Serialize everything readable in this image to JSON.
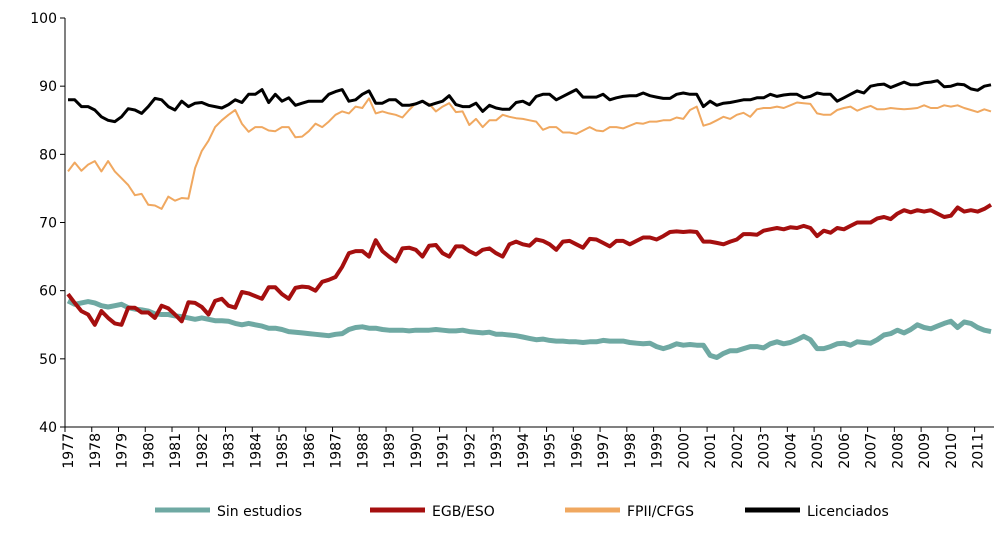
{
  "chart_data": {
    "type": "line",
    "categories": [
      "1977",
      null,
      null,
      null,
      "1978",
      null,
      null,
      null,
      "1979",
      null,
      null,
      null,
      "1980",
      null,
      null,
      null,
      "1981",
      null,
      null,
      null,
      "1982",
      null,
      null,
      null,
      "1983",
      null,
      null,
      null,
      "1984",
      null,
      null,
      null,
      "1985",
      null,
      null,
      null,
      "1986",
      null,
      null,
      null,
      "1987",
      null,
      null,
      null,
      "1988",
      null,
      null,
      null,
      "1989",
      null,
      null,
      null,
      "1990",
      null,
      null,
      null,
      "1991",
      null,
      null,
      null,
      "1992",
      null,
      null,
      null,
      "1993",
      null,
      null,
      null,
      "1994",
      null,
      null,
      null,
      "1995",
      null,
      null,
      null,
      "1996",
      null,
      null,
      null,
      "1997",
      null,
      null,
      null,
      "1998",
      null,
      null,
      null,
      "1999",
      null,
      null,
      null,
      "2000",
      null,
      null,
      null,
      "2001",
      null,
      null,
      null,
      "2002",
      null,
      null,
      null,
      "2003",
      null,
      null,
      null,
      "2004",
      null,
      null,
      null,
      "2005",
      null,
      null,
      null,
      "2006",
      null,
      null,
      null,
      "2007",
      null,
      null,
      null,
      "2008",
      null,
      null,
      null,
      "2009",
      null,
      null,
      null,
      "2010",
      null,
      null,
      null,
      "2011",
      null,
      null
    ],
    "series": [
      {
        "name": "Sin estudios",
        "color": "#6fa9a3",
        "width": 5,
        "values": [
          58.5,
          58,
          58.2,
          58.4,
          58.2,
          57.8,
          57.6,
          57.8,
          58,
          57.5,
          57.3,
          57.2,
          57,
          56.6,
          56.5,
          56.5,
          56.3,
          56.2,
          56,
          55.8,
          56,
          55.8,
          55.6,
          55.6,
          55.5,
          55.2,
          55,
          55.2,
          55,
          54.8,
          54.5,
          54.5,
          54.3,
          54,
          53.9,
          53.8,
          53.7,
          53.6,
          53.5,
          53.4,
          53.6,
          53.7,
          54.3,
          54.6,
          54.7,
          54.5,
          54.5,
          54.3,
          54.2,
          54.2,
          54.2,
          54.1,
          54.2,
          54.2,
          54.2,
          54.3,
          54.2,
          54.1,
          54.1,
          54.2,
          54,
          53.9,
          53.8,
          53.9,
          53.6,
          53.6,
          53.5,
          53.4,
          53.2,
          53,
          52.8,
          52.9,
          52.7,
          52.6,
          52.6,
          52.5,
          52.5,
          52.4,
          52.5,
          52.5,
          52.7,
          52.6,
          52.6,
          52.6,
          52.4,
          52.3,
          52.2,
          52.3,
          51.8,
          51.5,
          51.8,
          52.2,
          52,
          52.1,
          52,
          52,
          50.5,
          50.2,
          50.8,
          51.2,
          51.2,
          51.5,
          51.8,
          51.8,
          51.6,
          52.2,
          52.5,
          52.2,
          52.4,
          52.8,
          53.3,
          52.8,
          51.5,
          51.5,
          51.8,
          52.2,
          52.3,
          52,
          52.5,
          52.4,
          52.3,
          52.8,
          53.5,
          53.7,
          54.2,
          53.8,
          54.3,
          55,
          54.6,
          54.4,
          54.8,
          55.2,
          55.5,
          54.6,
          55.4,
          55.2,
          54.6,
          54.2,
          54
        ]
      },
      {
        "name": "EGB/ESO",
        "color": "#a50f0f",
        "width": 4,
        "values": [
          59.5,
          58.2,
          57,
          56.5,
          55,
          57,
          56,
          55.2,
          55,
          57.5,
          57.5,
          56.8,
          56.8,
          56,
          57.8,
          57.4,
          56.5,
          55.5,
          58.3,
          58.2,
          57.6,
          56.5,
          58.5,
          58.8,
          57.8,
          57.5,
          59.8,
          59.6,
          59.2,
          58.8,
          60.5,
          60.5,
          59.5,
          58.8,
          60.4,
          60.6,
          60.5,
          60,
          61.3,
          61.6,
          62,
          63.5,
          65.5,
          65.8,
          65.8,
          65,
          67.4,
          65.8,
          65,
          64.3,
          66.2,
          66.3,
          66,
          65,
          66.6,
          66.7,
          65.5,
          65,
          66.5,
          66.5,
          65.8,
          65.3,
          66,
          66.2,
          65.5,
          65,
          66.8,
          67.2,
          66.8,
          66.6,
          67.5,
          67.3,
          66.8,
          66,
          67.2,
          67.3,
          66.8,
          66.3,
          67.6,
          67.5,
          67,
          66.5,
          67.3,
          67.3,
          66.8,
          67.3,
          67.8,
          67.8,
          67.5,
          68,
          68.6,
          68.7,
          68.6,
          68.7,
          68.6,
          67.2,
          67.2,
          67,
          66.8,
          67.2,
          67.5,
          68.3,
          68.3,
          68.2,
          68.8,
          69,
          69.2,
          69,
          69.3,
          69.2,
          69.5,
          69.2,
          68,
          68.8,
          68.5,
          69.2,
          69,
          69.5,
          70,
          70,
          70,
          70.6,
          70.8,
          70.5,
          71.3,
          71.8,
          71.5,
          71.8,
          71.6,
          71.8,
          71.3,
          70.8,
          71,
          72.2,
          71.6,
          71.8,
          71.6,
          72,
          72.6
        ]
      },
      {
        "name": "FPII/CFGS",
        "color": "#f0a860",
        "width": 2,
        "values": [
          77.5,
          78.8,
          77.6,
          78.5,
          79,
          77.5,
          79,
          77.5,
          76.5,
          75.5,
          74,
          74.2,
          72.6,
          72.5,
          72,
          73.8,
          73.2,
          73.6,
          73.5,
          78,
          80.5,
          82,
          84,
          85,
          85.8,
          86.5,
          84.5,
          83.3,
          84,
          84,
          83.5,
          83.4,
          84,
          84,
          82.5,
          82.6,
          83.4,
          84.5,
          84,
          84.8,
          85.8,
          86.3,
          86,
          87,
          86.8,
          88.2,
          86,
          86.3,
          86,
          85.8,
          85.4,
          86.5,
          87.5,
          87.7,
          87.4,
          86.3,
          87,
          87.5,
          86.2,
          86.3,
          84.3,
          85.2,
          84,
          85,
          85,
          85.8,
          85.5,
          85.3,
          85.2,
          85,
          84.8,
          83.6,
          84,
          84,
          83.2,
          83.2,
          83,
          83.5,
          84,
          83.5,
          83.4,
          84,
          84,
          83.8,
          84.2,
          84.6,
          84.5,
          84.8,
          84.8,
          85,
          85,
          85.4,
          85.2,
          86.5,
          87,
          84.2,
          84.5,
          85,
          85.5,
          85.2,
          85.8,
          86.1,
          85.5,
          86.6,
          86.8,
          86.8,
          87,
          86.8,
          87.2,
          87.6,
          87.5,
          87.4,
          86,
          85.8,
          85.8,
          86.5,
          86.8,
          87,
          86.4,
          86.8,
          87.1,
          86.6,
          86.6,
          86.8,
          86.7,
          86.6,
          86.7,
          86.8,
          87.2,
          86.8,
          86.8,
          87.2,
          87,
          87.2,
          86.8,
          86.5,
          86.2,
          86.6,
          86.3
        ]
      },
      {
        "name": "Licenciados",
        "color": "#000000",
        "width": 3,
        "values": [
          88,
          88,
          87,
          87,
          86.5,
          85.5,
          85,
          84.8,
          85.5,
          86.7,
          86.5,
          86,
          87,
          88.2,
          88,
          87,
          86.5,
          87.8,
          87,
          87.5,
          87.6,
          87.2,
          87,
          86.8,
          87.3,
          88,
          87.6,
          88.8,
          88.8,
          89.5,
          87.6,
          88.8,
          87.8,
          88.3,
          87.2,
          87.5,
          87.8,
          87.8,
          87.8,
          88.8,
          89.2,
          89.5,
          87.8,
          88,
          88.8,
          89.3,
          87.5,
          87.5,
          88,
          88,
          87.2,
          87.2,
          87.4,
          87.8,
          87.2,
          87.5,
          87.8,
          88.6,
          87.3,
          87,
          87,
          87.5,
          86.3,
          87.2,
          86.8,
          86.6,
          86.6,
          87.6,
          87.8,
          87.3,
          88.5,
          88.8,
          88.8,
          88,
          88.5,
          89,
          89.5,
          88.4,
          88.4,
          88.4,
          88.8,
          88,
          88.3,
          88.5,
          88.6,
          88.6,
          89,
          88.6,
          88.4,
          88.2,
          88.2,
          88.8,
          89,
          88.8,
          88.8,
          87,
          87.8,
          87.2,
          87.5,
          87.6,
          87.8,
          88,
          88,
          88.3,
          88.3,
          88.8,
          88.5,
          88.7,
          88.8,
          88.8,
          88.3,
          88.5,
          89,
          88.8,
          88.8,
          87.8,
          88.3,
          88.8,
          89.3,
          89,
          90,
          90.2,
          90.3,
          89.8,
          90.2,
          90.6,
          90.2,
          90.2,
          90.5,
          90.6,
          90.8,
          89.9,
          90,
          90.3,
          90.2,
          89.6,
          89.4,
          90,
          90.2
        ]
      }
    ],
    "ylim": [
      40,
      100
    ],
    "yticks": [
      40,
      50,
      60,
      70,
      80,
      90,
      100
    ],
    "grid": false,
    "legend": "bottom"
  }
}
